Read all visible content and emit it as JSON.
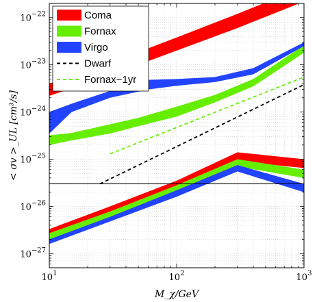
{
  "chart_data": {
    "type": "line",
    "xlabel": "M_χ/GeV",
    "ylabel": "< σv >_UL [cm³/s]",
    "xscale": "log",
    "yscale": "log",
    "xlim": [
      10,
      1000
    ],
    "ylim": [
      5e-28,
      2e-22
    ],
    "x_ticks": [
      {
        "value": 10,
        "base": "10",
        "exp": "1"
      },
      {
        "value": 100,
        "base": "10",
        "exp": "2"
      },
      {
        "value": 1000,
        "base": "10",
        "exp": "3"
      }
    ],
    "y_ticks": [
      {
        "value": 1e-27,
        "base": "10",
        "exp": "−27"
      },
      {
        "value": 1e-26,
        "base": "10",
        "exp": "−26"
      },
      {
        "value": 1e-25,
        "base": "10",
        "exp": "−25"
      },
      {
        "value": 1e-24,
        "base": "10",
        "exp": "−24"
      },
      {
        "value": 1e-23,
        "base": "10",
        "exp": "−23"
      },
      {
        "value": 1e-22,
        "base": "10",
        "exp": "−22"
      }
    ],
    "grid": "dotted, major and minor",
    "legend_position": "top-left",
    "horizontal_reference_line": 3e-26,
    "bands": [
      {
        "name": "Coma",
        "color": "#ff0000",
        "x": [
          10,
          30,
          100,
          300,
          1000
        ],
        "lower": [
          2.2e-24,
          6e-24,
          2e-23,
          6e-23,
          2.2e-22
        ],
        "upper": [
          4e-24,
          1.1e-23,
          3.8e-23,
          1.2e-22,
          4.5e-22
        ]
      },
      {
        "name": "Coma",
        "color": "#ff0000",
        "x": [
          10,
          30,
          100,
          300,
          1000
        ],
        "lower": [
          2.3e-27,
          7e-27,
          2.4e-26,
          9e-26,
          6.5e-26
        ],
        "upper": [
          3.3e-27,
          1e-26,
          3.5e-26,
          1.4e-25,
          1e-25
        ]
      },
      {
        "name": "Fornax",
        "color": "#66ee00",
        "x": [
          10,
          15,
          30,
          50,
          100,
          200,
          400,
          1000
        ],
        "lower": [
          2e-25,
          2.5e-25,
          3.5e-25,
          5e-25,
          8e-25,
          1.6e-24,
          3.5e-24,
          1.8e-23
        ],
        "upper": [
          3.2e-25,
          3.6e-25,
          5.5e-25,
          7.5e-25,
          1.3e-24,
          2.3e-24,
          5e-24,
          2.6e-23
        ]
      },
      {
        "name": "Fornax",
        "color": "#66ee00",
        "x": [
          10,
          30,
          100,
          300,
          1000
        ],
        "lower": [
          1.9e-27,
          5.5e-27,
          2e-26,
          7e-26,
          4e-26
        ],
        "upper": [
          2.7e-27,
          7.8e-27,
          2.8e-26,
          1e-25,
          6e-26
        ]
      },
      {
        "name": "Virgo",
        "color": "#2244ff",
        "x": [
          10,
          15,
          30,
          60,
          100,
          200,
          400,
          1000
        ],
        "lower": [
          3.5e-25,
          1e-24,
          2e-24,
          3e-24,
          3.6e-24,
          4.3e-24,
          6.3e-24,
          2.5e-23
        ],
        "upper": [
          1e-24,
          1.5e-24,
          2.8e-24,
          4.8e-24,
          5e-24,
          5.5e-24,
          8.5e-24,
          3e-23
        ]
      },
      {
        "name": "Virgo",
        "color": "#2244ff",
        "x": [
          10,
          30,
          100,
          300,
          1000
        ],
        "lower": [
          1.6e-27,
          4.8e-27,
          1.6e-26,
          5.5e-26,
          2e-26
        ],
        "upper": [
          2e-27,
          6e-27,
          2.2e-26,
          7.5e-26,
          3e-26
        ]
      }
    ],
    "lines": [
      {
        "name": "Dwarf",
        "color": "#000000",
        "style": "dashed",
        "x": [
          25,
          1000
        ],
        "y": [
          3e-26,
          3.8e-24
        ]
      },
      {
        "name": "Fornax−1yr",
        "color": "#66ee00",
        "style": "dashed",
        "x": [
          30,
          1000
        ],
        "y": [
          1.3e-25,
          5.5e-24
        ]
      }
    ],
    "legend": [
      {
        "label": "Coma",
        "color": "#ff0000",
        "kind": "band"
      },
      {
        "label": "Fornax",
        "color": "#66ee00",
        "kind": "band"
      },
      {
        "label": "Virgo",
        "color": "#2244ff",
        "kind": "band"
      },
      {
        "label": "Dwarf",
        "color": "#000000",
        "kind": "dashed"
      },
      {
        "label": "Fornax−1yr",
        "color": "#66ee00",
        "kind": "dashed"
      }
    ]
  }
}
